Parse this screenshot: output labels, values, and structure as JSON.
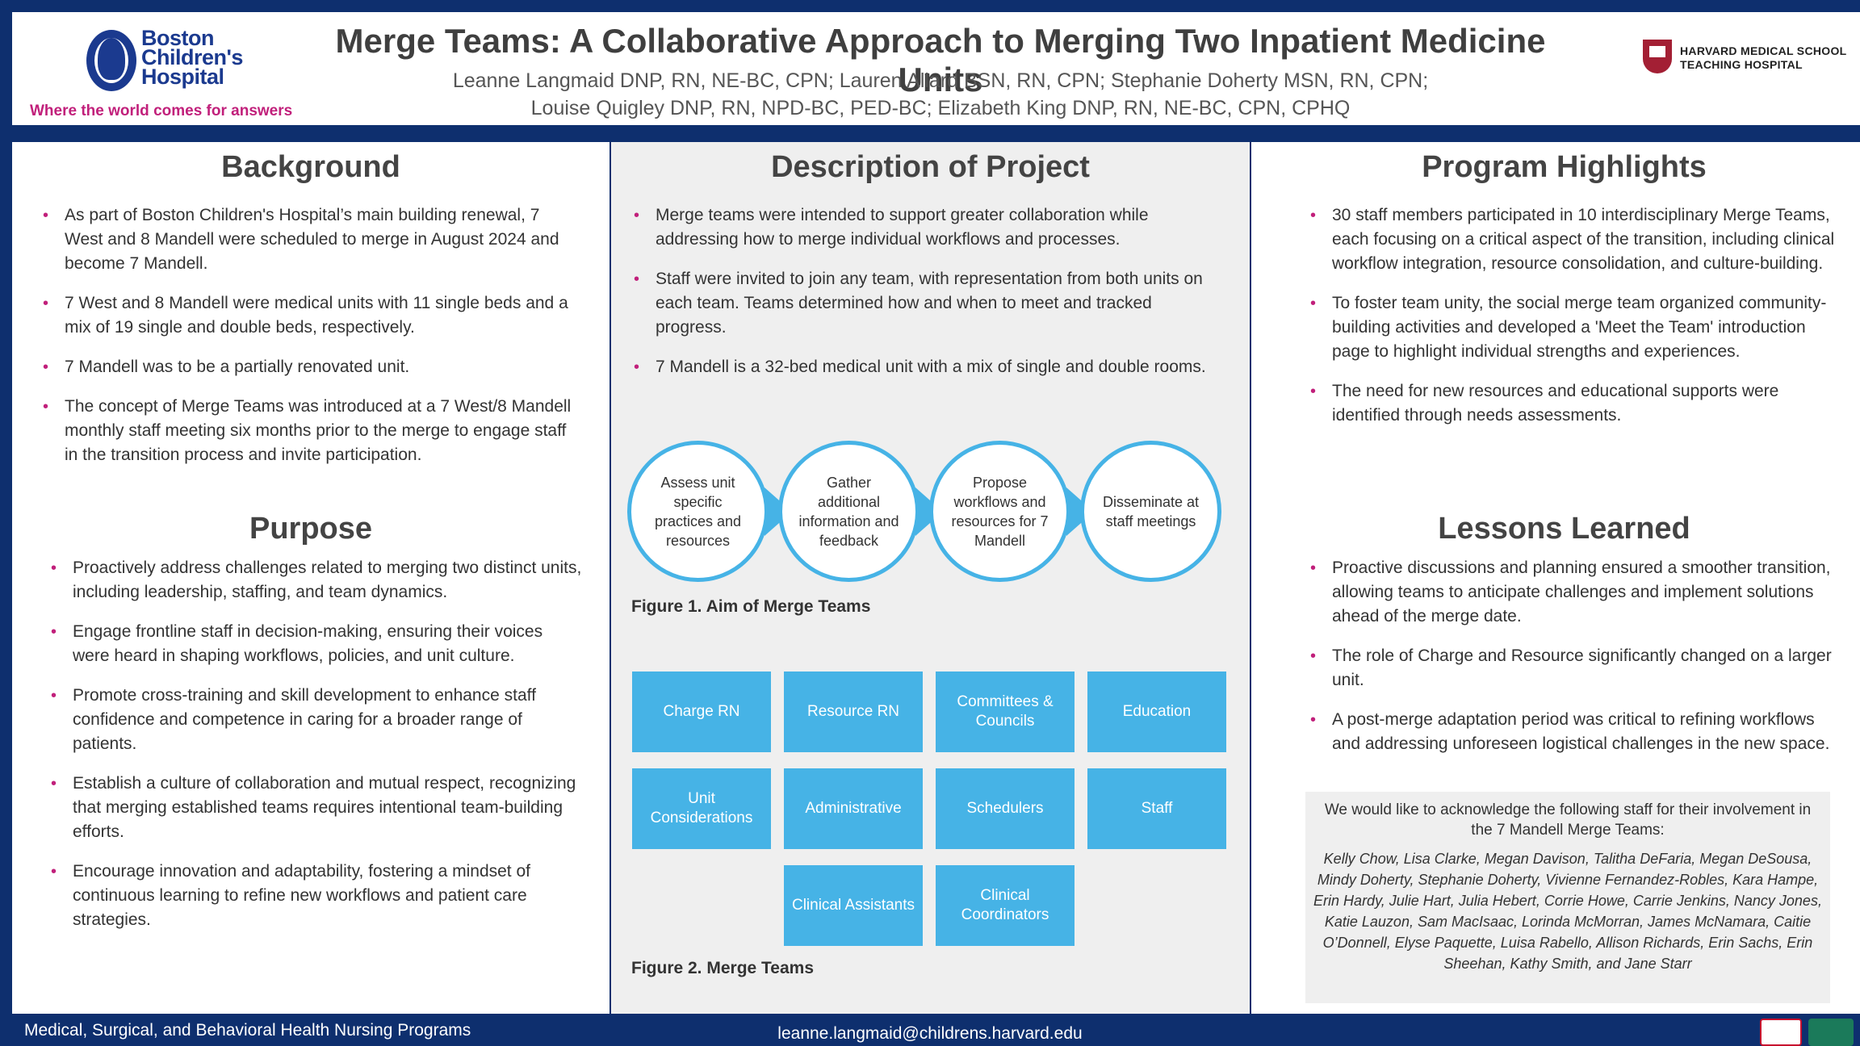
{
  "header": {
    "logo_text_lines": [
      "Boston",
      "Children's",
      "Hospital"
    ],
    "tagline": "Where the world comes for answers",
    "title": "Merge Teams: A Collaborative Approach to Merging Two Inpatient Medicine Units",
    "authors_line1": "Leanne Langmaid DNP, RN, NE-BC, CPN; Lauren Allard BSN, RN, CPN; Stephanie Doherty MSN, RN, CPN;",
    "authors_line2": "Louise Quigley DNP, RN, NPD-BC, PED-BC; Elizabeth King DNP, RN, NE-BC, CPN, CPHQ",
    "harvard_line1": "HARVARD MEDICAL SCHOOL",
    "harvard_line2": "TEACHING HOSPITAL"
  },
  "background": {
    "heading": "Background",
    "items": [
      "As part of Boston Children's Hospital’s main building renewal, 7 West and 8 Mandell were scheduled to merge in August 2024 and become 7 Mandell.",
      "7 West and 8 Mandell were medical units with 11 single beds and a mix of 19 single and double beds, respectively.",
      "7 Mandell was to be a partially renovated unit.",
      "The concept of Merge Teams was introduced at a 7 West/8 Mandell monthly staff meeting six months prior to the merge to engage staff in the transition process and invite participation."
    ]
  },
  "purpose": {
    "heading": "Purpose",
    "items": [
      "Proactively address challenges related to merging two distinct units, including leadership, staffing, and team dynamics.",
      "Engage frontline staff in decision-making, ensuring their voices were heard in shaping workflows, policies, and unit culture.",
      "Promote cross-training and skill development to enhance staff confidence and competence in caring for a broader range of patients.",
      "Establish a culture of collaboration and mutual respect, recognizing that merging established teams requires intentional team-building efforts.",
      "Encourage innovation and adaptability, fostering a mindset of continuous learning to refine new workflows and patient care strategies."
    ]
  },
  "description": {
    "heading": "Description of Project",
    "items": [
      "Merge teams were intended to support greater collaboration while addressing how to merge individual workflows and processes.",
      "Staff were invited to join any team, with representation from both units on each team. Teams determined how and when to meet and tracked progress.",
      "7 Mandell is a 32-bed medical unit with a mix of single and double rooms."
    ],
    "flow_steps": [
      "Assess unit specific practices and resources",
      "Gather additional information and feedback",
      "Propose workflows and resources for 7 Mandell",
      "Disseminate at staff meetings"
    ],
    "figure1_caption": "Figure 1. Aim of Merge Teams",
    "teams": [
      "Charge RN",
      "Resource RN",
      "Committees & Councils",
      "Education",
      "Unit Considerations",
      "Administrative",
      "Schedulers",
      "Staff",
      "Clinical Assistants",
      "Clinical Coordinators"
    ],
    "figure2_caption": "Figure 2. Merge Teams"
  },
  "highlights": {
    "heading": "Program Highlights",
    "items": [
      "30 staff members participated in 10 interdisciplinary Merge Teams, each focusing on a critical aspect of the transition, including clinical workflow integration, resource consolidation, and culture-building.",
      "To foster team unity, the social merge team organized community-building activities and developed a 'Meet the Team' introduction page to highlight individual strengths and experiences.",
      "The need for new resources and educational supports were identified through needs assessments."
    ]
  },
  "lessons": {
    "heading": "Lessons Learned",
    "items": [
      "Proactive discussions and planning ensured a smoother transition, allowing teams to anticipate challenges and implement solutions ahead of the merge date.",
      "The role of Charge and Resource significantly changed on a larger unit.",
      "A post-merge adaptation period was critical to refining workflows and addressing unforeseen logistical challenges in the new space."
    ]
  },
  "acknowledgement": {
    "intro": "We would like to acknowledge the following staff for their involvement in the 7 Mandell Merge Teams:",
    "names": "Kelly Chow, Lisa Clarke, Megan Davison, Talitha DeFaria, Megan DeSousa, Mindy Doherty, Stephanie Doherty, Vivienne Fernandez-Robles, Kara Hampe, Erin Hardy, Julie Hart, Julia Hebert, Corrie Howe,  Carrie Jenkins, Nancy Jones, Katie Lauzon, Sam MacIsaac, Lorinda McMorran, James McNamara, Caitie O’Donnell, Elyse Paquette, Luisa Rabello, Allison Richards, Erin Sachs, Erin Sheehan, Kathy Smith, and Jane Starr"
  },
  "footer": {
    "left": "Medical, Surgical, and Behavioral Health Nursing Programs",
    "email": "leanne.langmaid@childrens.harvard.edu"
  },
  "colors": {
    "navy": "#0e2f6e",
    "accent_blue": "#46b3e6",
    "bullet_magenta": "#c1207b",
    "harvard_crimson": "#a31f34"
  }
}
